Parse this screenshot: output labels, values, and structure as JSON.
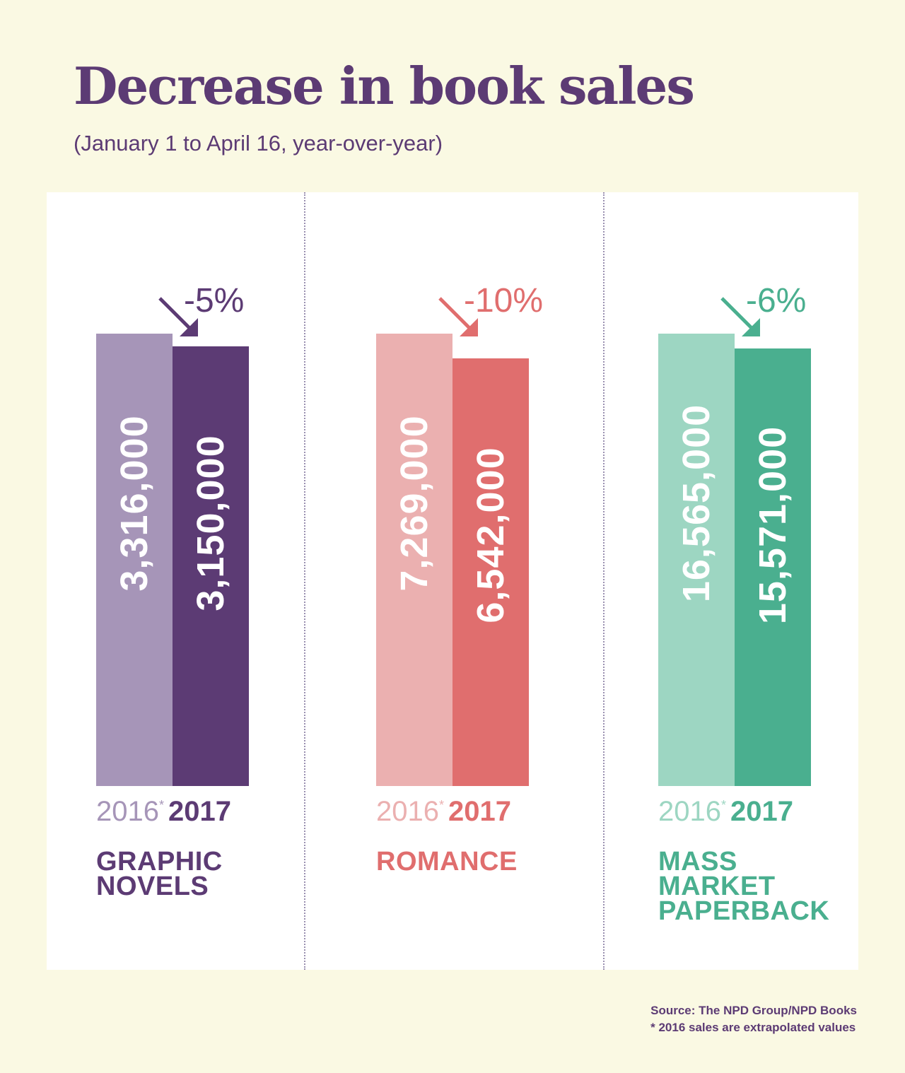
{
  "title": "Decrease in book sales",
  "subtitle": "(January 1 to April 16, year-over-year)",
  "source": "Source: The NPD Group/NPD Books",
  "footnote": "* 2016 sales are extrapolated values",
  "chart_data": {
    "type": "bar",
    "title": "Decrease in book sales",
    "subtitle": "(January 1 to April 16, year-over-year)",
    "series_labels": [
      "2016",
      "2017"
    ],
    "footnote_marker": "*",
    "groups": [
      {
        "category": "GRAPHIC NOVELS",
        "category_lines": [
          "GRAPHIC",
          "NOVELS"
        ],
        "values": [
          3316000,
          3150000
        ],
        "labels": [
          "3,316,000",
          "3,150,000"
        ],
        "change": "-5%",
        "colors": [
          "#a695b8",
          "#5c3b74"
        ]
      },
      {
        "category": "ROMANCE",
        "category_lines": [
          "ROMANCE"
        ],
        "values": [
          7269000,
          6542000
        ],
        "labels": [
          "7,269,000",
          "6,542,000"
        ],
        "change": "-10%",
        "colors": [
          "#ebb0b0",
          "#e06e6e"
        ]
      },
      {
        "category": "MASS MARKET PAPERBACK",
        "category_lines": [
          "MASS",
          "MARKET",
          "PAPERBACK"
        ],
        "values": [
          16565000,
          15571000
        ],
        "labels": [
          "16,565,000",
          "15,571,000"
        ],
        "change": "-6%",
        "colors": [
          "#9dd6c2",
          "#4aaf8f"
        ]
      }
    ]
  }
}
